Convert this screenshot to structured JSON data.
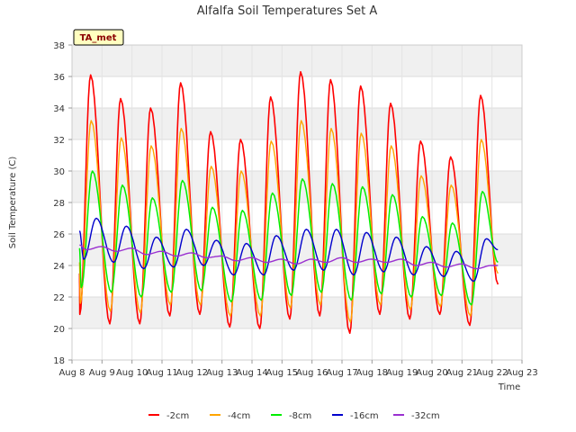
{
  "chart_data": {
    "type": "line",
    "title": "Alfalfa Soil Temperatures Set A",
    "xlabel": "Time",
    "ylabel": "Soil Temperature (C)",
    "tag": "TA_met",
    "xlim": [
      8,
      23
    ],
    "ylim": [
      18,
      38
    ],
    "x_ticks": [
      8,
      9,
      10,
      11,
      12,
      13,
      14,
      15,
      16,
      17,
      18,
      19,
      20,
      21,
      22,
      23
    ],
    "x_tick_labels": [
      "Aug 8",
      "Aug 9",
      "Aug 10",
      "Aug 11",
      "Aug 12",
      "Aug 13",
      "Aug 14",
      "Aug 15",
      "Aug 16",
      "Aug 17",
      "Aug 18",
      "Aug 19",
      "Aug 20",
      "Aug 21",
      "Aug 22",
      "Aug 23"
    ],
    "y_ticks": [
      18,
      20,
      22,
      24,
      26,
      28,
      30,
      32,
      34,
      36,
      38
    ],
    "legend_position": "bottom",
    "grid": true,
    "x_start": 8.25,
    "x_end": 22.2,
    "series": [
      {
        "name": "-2cm",
        "color": "#ff0000",
        "start_value": 23.5,
        "end_value": 22.8,
        "daily": [
          {
            "min": 20.9,
            "max": 36.1
          },
          {
            "min": 20.3,
            "max": 34.6
          },
          {
            "min": 20.3,
            "max": 34.0
          },
          {
            "min": 20.8,
            "max": 35.6
          },
          {
            "min": 20.9,
            "max": 32.5
          },
          {
            "min": 20.1,
            "max": 32.0
          },
          {
            "min": 20.0,
            "max": 34.7
          },
          {
            "min": 20.6,
            "max": 36.3
          },
          {
            "min": 20.8,
            "max": 35.8
          },
          {
            "min": 19.7,
            "max": 35.4
          },
          {
            "min": 20.9,
            "max": 34.3
          },
          {
            "min": 20.6,
            "max": 31.9
          },
          {
            "min": 20.9,
            "max": 30.9
          },
          {
            "min": 20.2,
            "max": 34.8
          }
        ]
      },
      {
        "name": "-4cm",
        "color": "#ffa500",
        "start_value": 24.2,
        "end_value": 23.5,
        "daily": [
          {
            "min": 21.6,
            "max": 33.2
          },
          {
            "min": 21.1,
            "max": 32.1
          },
          {
            "min": 21.0,
            "max": 31.6
          },
          {
            "min": 21.5,
            "max": 32.7
          },
          {
            "min": 21.5,
            "max": 30.3
          },
          {
            "min": 20.8,
            "max": 30.0
          },
          {
            "min": 20.8,
            "max": 31.9
          },
          {
            "min": 21.3,
            "max": 33.2
          },
          {
            "min": 21.5,
            "max": 32.7
          },
          {
            "min": 20.4,
            "max": 32.4
          },
          {
            "min": 21.5,
            "max": 31.6
          },
          {
            "min": 21.2,
            "max": 29.7
          },
          {
            "min": 21.4,
            "max": 29.1
          },
          {
            "min": 20.8,
            "max": 32.0
          }
        ]
      },
      {
        "name": "-8cm",
        "color": "#00ee00",
        "start_value": 25.1,
        "end_value": 24.2,
        "daily": [
          {
            "min": 22.6,
            "max": 30.0
          },
          {
            "min": 22.3,
            "max": 29.1
          },
          {
            "min": 22.0,
            "max": 28.3
          },
          {
            "min": 22.3,
            "max": 29.4
          },
          {
            "min": 22.4,
            "max": 27.7
          },
          {
            "min": 21.7,
            "max": 27.5
          },
          {
            "min": 21.8,
            "max": 28.6
          },
          {
            "min": 22.1,
            "max": 29.5
          },
          {
            "min": 22.3,
            "max": 29.2
          },
          {
            "min": 21.8,
            "max": 29.0
          },
          {
            "min": 22.2,
            "max": 28.5
          },
          {
            "min": 22.0,
            "max": 27.1
          },
          {
            "min": 22.1,
            "max": 26.7
          },
          {
            "min": 21.5,
            "max": 28.7
          }
        ]
      },
      {
        "name": "-16cm",
        "color": "#0000cc",
        "start_value": 26.2,
        "end_value": 25.0,
        "daily": [
          {
            "min": 24.4,
            "max": 27.0
          },
          {
            "min": 24.2,
            "max": 26.5
          },
          {
            "min": 23.8,
            "max": 25.8
          },
          {
            "min": 23.9,
            "max": 26.3
          },
          {
            "min": 24.0,
            "max": 25.6
          },
          {
            "min": 23.4,
            "max": 25.4
          },
          {
            "min": 23.4,
            "max": 25.9
          },
          {
            "min": 23.7,
            "max": 26.3
          },
          {
            "min": 23.7,
            "max": 26.3
          },
          {
            "min": 23.4,
            "max": 26.1
          },
          {
            "min": 23.6,
            "max": 25.8
          },
          {
            "min": 23.4,
            "max": 25.2
          },
          {
            "min": 23.3,
            "max": 24.9
          },
          {
            "min": 23.0,
            "max": 25.7
          }
        ]
      },
      {
        "name": "-32cm",
        "color": "#9a30d0",
        "start_value": 25.3,
        "end_value": 24.0,
        "daily": [
          {
            "min": 25.0,
            "max": 25.2
          },
          {
            "min": 24.9,
            "max": 25.1
          },
          {
            "min": 24.7,
            "max": 24.9
          },
          {
            "min": 24.6,
            "max": 24.8
          },
          {
            "min": 24.5,
            "max": 24.6
          },
          {
            "min": 24.3,
            "max": 24.5
          },
          {
            "min": 24.2,
            "max": 24.4
          },
          {
            "min": 24.1,
            "max": 24.4
          },
          {
            "min": 24.2,
            "max": 24.5
          },
          {
            "min": 24.2,
            "max": 24.4
          },
          {
            "min": 24.2,
            "max": 24.4
          },
          {
            "min": 24.0,
            "max": 24.2
          },
          {
            "min": 23.9,
            "max": 24.1
          },
          {
            "min": 23.8,
            "max": 24.0
          }
        ]
      }
    ]
  }
}
